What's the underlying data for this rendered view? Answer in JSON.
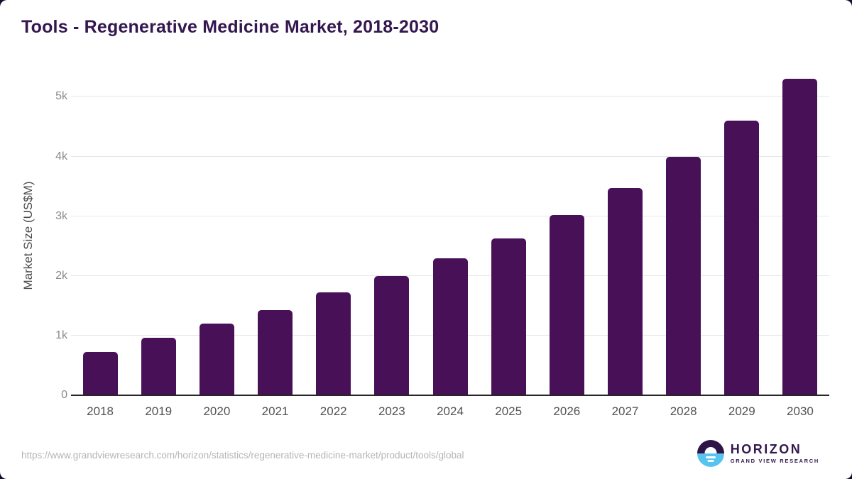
{
  "page": {
    "background_color": "#1a0a2e",
    "card_color": "#ffffff"
  },
  "header": {
    "title": "Tools - Regenerative Medicine Market, 2018-2030",
    "title_color": "#33174e"
  },
  "chart_data": {
    "type": "bar",
    "title": "Tools - Regenerative Medicine Market, 2018-2030",
    "categories": [
      "2018",
      "2019",
      "2020",
      "2021",
      "2022",
      "2023",
      "2024",
      "2025",
      "2026",
      "2027",
      "2028",
      "2029",
      "2030"
    ],
    "values": [
      720,
      960,
      1200,
      1430,
      1730,
      2000,
      2300,
      2630,
      3020,
      3470,
      4000,
      4600,
      5300
    ],
    "xlabel": "",
    "ylabel": "Market Size (US$M)",
    "ylim": [
      0,
      5350
    ],
    "ytick_values": [
      0,
      1000,
      2000,
      3000,
      4000,
      5000
    ],
    "ytick_labels": [
      "0",
      "1k",
      "2k",
      "3k",
      "4k",
      "5k"
    ],
    "grid": "horizontal",
    "legend": "none",
    "bar_color": "#481057",
    "gridline_color": "#e6e6e6",
    "axis_line_color": "#262626"
  },
  "footer": {
    "source_url": "https://www.grandviewresearch.com/horizon/statistics/regenerative-medicine-market/product/tools/global",
    "logo": {
      "wordmark": "HORIZON",
      "subtitle": "GRAND VIEW RESEARCH",
      "icon": "horizon-sun-icon",
      "icon_top_color": "#2e1545",
      "icon_bottom_color": "#56c4ef",
      "text_color": "#33174e"
    }
  }
}
